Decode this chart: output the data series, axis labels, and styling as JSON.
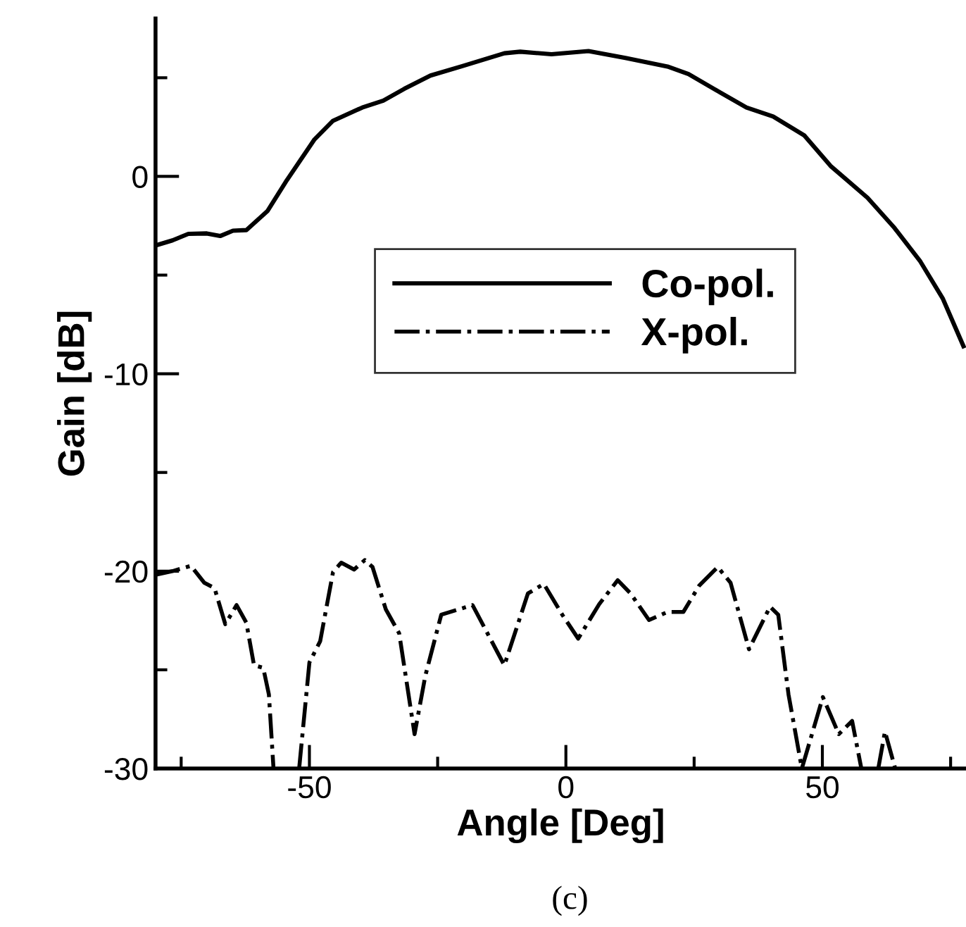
{
  "chart_data": {
    "type": "line",
    "xlabel": "Angle [Deg]",
    "ylabel": "Gain [dB]",
    "annotations": [
      "(c)"
    ],
    "xlim": [
      -80,
      78
    ],
    "ylim": [
      -30,
      8
    ],
    "xticks": [
      {
        "value": -75,
        "label": null
      },
      -50,
      {
        "value": -25,
        "label": null
      },
      0,
      {
        "value": 25,
        "label": null
      },
      50,
      {
        "value": 75,
        "label": null
      }
    ],
    "yticks": [
      -30,
      {
        "value": -25,
        "label": null
      },
      -20,
      {
        "value": -15,
        "label": null
      },
      -10,
      {
        "value": -5,
        "label": null
      },
      0,
      {
        "value": 5,
        "label": null
      }
    ],
    "grid": false,
    "legend": "center",
    "marker": "none",
    "series": [
      {
        "name": "Co-pol.",
        "color": "#000000",
        "line_style": "solid",
        "x": [
          -80,
          -76.7,
          -73.6,
          -70.0,
          -67.4,
          -64.9,
          -62.3,
          -58.2,
          -54.6,
          -49.0,
          -45.4,
          -39.7,
          -35.6,
          -31.5,
          -26.4,
          -20.2,
          -12.0,
          -8.9,
          -2.8,
          4.4,
          11.6,
          19.8,
          23.9,
          30.1,
          35.2,
          40.4,
          46.5,
          51.6,
          58.8,
          63.9,
          69.1,
          73.5,
          77.5
        ],
        "values": [
          -3.5,
          -3.24,
          -2.91,
          -2.89,
          -3.02,
          -2.75,
          -2.72,
          -1.76,
          -0.27,
          1.88,
          2.82,
          3.49,
          3.84,
          4.44,
          5.11,
          5.59,
          6.24,
          6.32,
          6.19,
          6.35,
          6.0,
          5.57,
          5.19,
          4.25,
          3.49,
          3.04,
          2.07,
          0.53,
          -1.08,
          -2.56,
          -4.31,
          -6.2,
          -8.6
        ]
      },
      {
        "name": "X-pol.",
        "color": "#000000",
        "line_style": "dashdot",
        "x": [
          -80,
          -76.7,
          -73.1,
          -70.5,
          -68.5,
          -66.4,
          -64.2,
          -62.3,
          -60.8,
          -59.0,
          -57.9,
          -57.0,
          -54.5,
          -52.0,
          -50.0,
          -47.9,
          -45.4,
          -43.8,
          -41.3,
          -39.2,
          -37.7,
          -35.1,
          -32.5,
          -29.5,
          -27.4,
          -24.3,
          -18.2,
          -12.0,
          -7.4,
          -4.3,
          -0.7,
          2.4,
          6.5,
          10.1,
          12.6,
          16.2,
          19.8,
          22.9,
          26.0,
          29.6,
          32.1,
          35.7,
          39.8,
          41.4,
          43.4,
          46.0,
          50.1,
          53.2,
          55.8,
          57.6,
          59.3,
          60.9,
          62.2,
          64.2
        ],
        "values": [
          -20.19,
          -20.0,
          -19.73,
          -20.59,
          -20.86,
          -22.69,
          -21.72,
          -22.61,
          -24.77,
          -24.9,
          -26.25,
          -30.0,
          null,
          -30.0,
          -24.63,
          -23.55,
          -20.05,
          -19.57,
          -19.92,
          -19.44,
          -19.79,
          -21.94,
          -23.15,
          -28.26,
          -25.3,
          -22.21,
          -21.72,
          -24.77,
          -21.13,
          -20.65,
          -22.21,
          -23.42,
          -21.67,
          -20.46,
          -21.13,
          -22.48,
          -22.07,
          -22.07,
          -20.73,
          -19.79,
          -20.59,
          -23.96,
          -21.8,
          -22.21,
          -26.25,
          -30.0,
          -26.38,
          -28.26,
          -27.59,
          -30.0,
          null,
          -30.0,
          -28.13,
          -30.0
        ]
      }
    ]
  }
}
